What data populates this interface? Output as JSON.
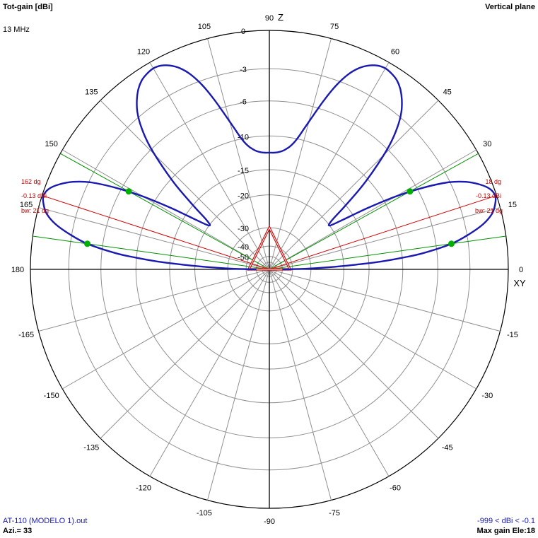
{
  "header": {
    "title": "Tot-gain [dBi]",
    "frequency": "13 MHz",
    "plane": "Vertical plane"
  },
  "footer": {
    "file": "AT-110 (MODELO 1).out",
    "azimuth": "Azi.= 33",
    "range": "-999 < dBi < -0.1",
    "max_gain": "Max gain Ele:18"
  },
  "chart_data": {
    "type": "polar",
    "plane": "vertical",
    "frequency": "13 MHz",
    "unit": "dBi",
    "axis_labels": {
      "z": "Z",
      "xy": "XY"
    },
    "angle_ticks": [
      {
        "angle": 0,
        "label": "0"
      },
      {
        "angle": 15,
        "label": "15"
      },
      {
        "angle": 30,
        "label": "30"
      },
      {
        "angle": 45,
        "label": "45"
      },
      {
        "angle": 60,
        "label": "60"
      },
      {
        "angle": 75,
        "label": "75"
      },
      {
        "angle": 90,
        "label": "90"
      },
      {
        "angle": 105,
        "label": "105"
      },
      {
        "angle": 120,
        "label": "120"
      },
      {
        "angle": 135,
        "label": "135"
      },
      {
        "angle": 150,
        "label": "150"
      },
      {
        "angle": 165,
        "label": "165"
      },
      {
        "angle": 180,
        "label": "180"
      },
      {
        "angle": -165,
        "label": "-165"
      },
      {
        "angle": -150,
        "label": "-150"
      },
      {
        "angle": -135,
        "label": "-135"
      },
      {
        "angle": -120,
        "label": "-120"
      },
      {
        "angle": -105,
        "label": "-105"
      },
      {
        "angle": -90,
        "label": "-90"
      },
      {
        "angle": -75,
        "label": "-75"
      },
      {
        "angle": -60,
        "label": "-60"
      },
      {
        "angle": -45,
        "label": "-45"
      },
      {
        "angle": -30,
        "label": "-30"
      },
      {
        "angle": -15,
        "label": "-15"
      }
    ],
    "gain_rings": [
      {
        "value": 0,
        "label": "0"
      },
      {
        "value": -3,
        "label": "-3"
      },
      {
        "value": -6,
        "label": "-6"
      },
      {
        "value": -10,
        "label": "-10"
      },
      {
        "value": -15,
        "label": "-15"
      },
      {
        "value": -20,
        "label": "-20"
      },
      {
        "value": -30,
        "label": "-30"
      },
      {
        "value": -40,
        "label": "-40"
      },
      {
        "value": -50,
        "label": "-50"
      }
    ],
    "pattern": {
      "color": "#1a1ab0",
      "angles": [
        0,
        1,
        2,
        3,
        4,
        5,
        6,
        8,
        10,
        12,
        14,
        16,
        18,
        20,
        22,
        24,
        26,
        28,
        30,
        32,
        34,
        36,
        38,
        40,
        42,
        44,
        46,
        48,
        50,
        52,
        54,
        56,
        58,
        60,
        62,
        64,
        66,
        68,
        70,
        72,
        74,
        76,
        78,
        80,
        82,
        84,
        86,
        88,
        90
      ],
      "gain": [
        -50,
        -32,
        -24,
        -18,
        -13,
        -10,
        -7.5,
        -4.5,
        -2.8,
        -1.5,
        -0.7,
        -0.3,
        -0.1,
        -0.3,
        -0.9,
        -1.8,
        -3.2,
        -5.5,
        -8.5,
        -12.5,
        -17,
        -20,
        -19,
        -15,
        -11,
        -8,
        -5.5,
        -3.8,
        -2.6,
        -1.8,
        -1.2,
        -0.8,
        -0.6,
        -0.5,
        -0.6,
        -0.9,
        -1.4,
        -2.2,
        -3.4,
        -5,
        -6.8,
        -8.5,
        -10,
        -11,
        -11.6,
        -12,
        -12.2,
        -12.3,
        -12.3
      ],
      "symmetric": true
    },
    "max_gain_markers": [
      {
        "angle": 18,
        "gain": -0.1,
        "label": "18 dg"
      },
      {
        "angle": 162,
        "gain": -0.1,
        "label": "162 dg"
      }
    ],
    "half_power_points": [
      {
        "angle": 8,
        "gain": -4.5
      },
      {
        "angle": 29,
        "gain": -6.8
      },
      {
        "angle": 151,
        "gain": -6.8
      },
      {
        "angle": 172,
        "gain": -4.5
      }
    ],
    "beamwidth_annotations": {
      "right": {
        "angle": "18 dg",
        "gain": "-0.13 dBi",
        "bw": "bw: 21 dg"
      },
      "left": {
        "angle": "162 dg",
        "gain": "-0.13 dBi",
        "bw": "bw: 21 dg"
      }
    },
    "inner_triangle": {
      "vertices": [
        {
          "angle": 90,
          "gain": -30
        },
        {
          "angle": 0,
          "gain": -42
        },
        {
          "angle": 180,
          "gain": -42
        }
      ]
    },
    "colors": {
      "grid": "#909090",
      "axis": "#000000",
      "max_line": "#d00000",
      "bw_line": "#009000",
      "bw_point": "#00b000",
      "annotation": "#c00000"
    }
  }
}
